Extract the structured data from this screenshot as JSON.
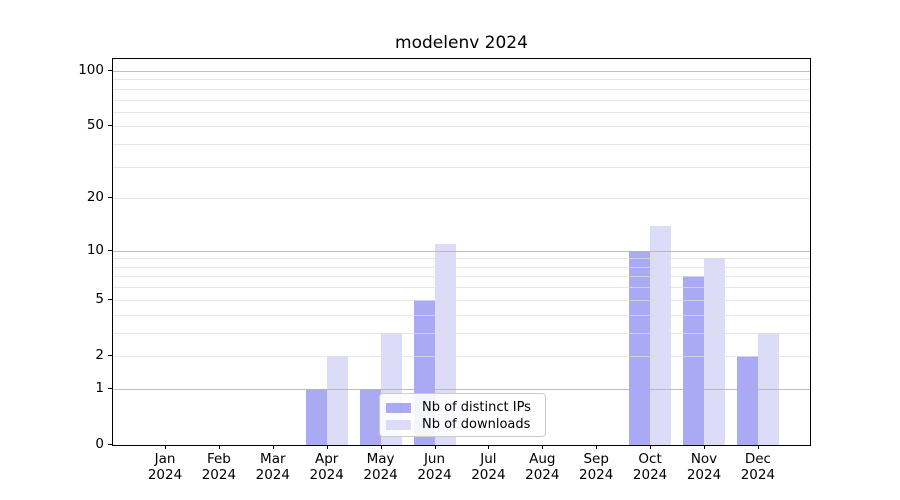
{
  "chart_data": {
    "type": "bar",
    "title": "modelenv 2024",
    "categories": [
      "Jan",
      "Feb",
      "Mar",
      "Apr",
      "May",
      "Jun",
      "Jul",
      "Aug",
      "Sep",
      "Oct",
      "Nov",
      "Dec"
    ],
    "year_label": "2024",
    "series": [
      {
        "name": "Nb of distinct IPs",
        "color": "#a9a9f4",
        "values": [
          0,
          0,
          0,
          1,
          1,
          5,
          0,
          0,
          0,
          10,
          7,
          2
        ]
      },
      {
        "name": "Nb of downloads",
        "color": "#dcdcf9",
        "values": [
          0,
          0,
          0,
          2,
          3,
          11,
          0,
          0,
          0,
          14,
          9,
          3
        ]
      }
    ],
    "yscale": "log1p",
    "ylim": [
      0,
      116
    ],
    "yticks": [
      0,
      1,
      2,
      5,
      10,
      20,
      50,
      100
    ],
    "major_gridlines": [
      1,
      10,
      100
    ],
    "minor_gridlines": [
      2,
      3,
      4,
      5,
      6,
      7,
      8,
      9,
      20,
      30,
      40,
      50,
      60,
      70,
      80,
      90
    ],
    "grid": true,
    "legend_position": "lower center",
    "xlabel": "",
    "ylabel": ""
  },
  "colors": {
    "background": "#ffffff",
    "spine": "#000000",
    "major_grid": "#b3b3b3",
    "minor_grid": "#dedede"
  }
}
